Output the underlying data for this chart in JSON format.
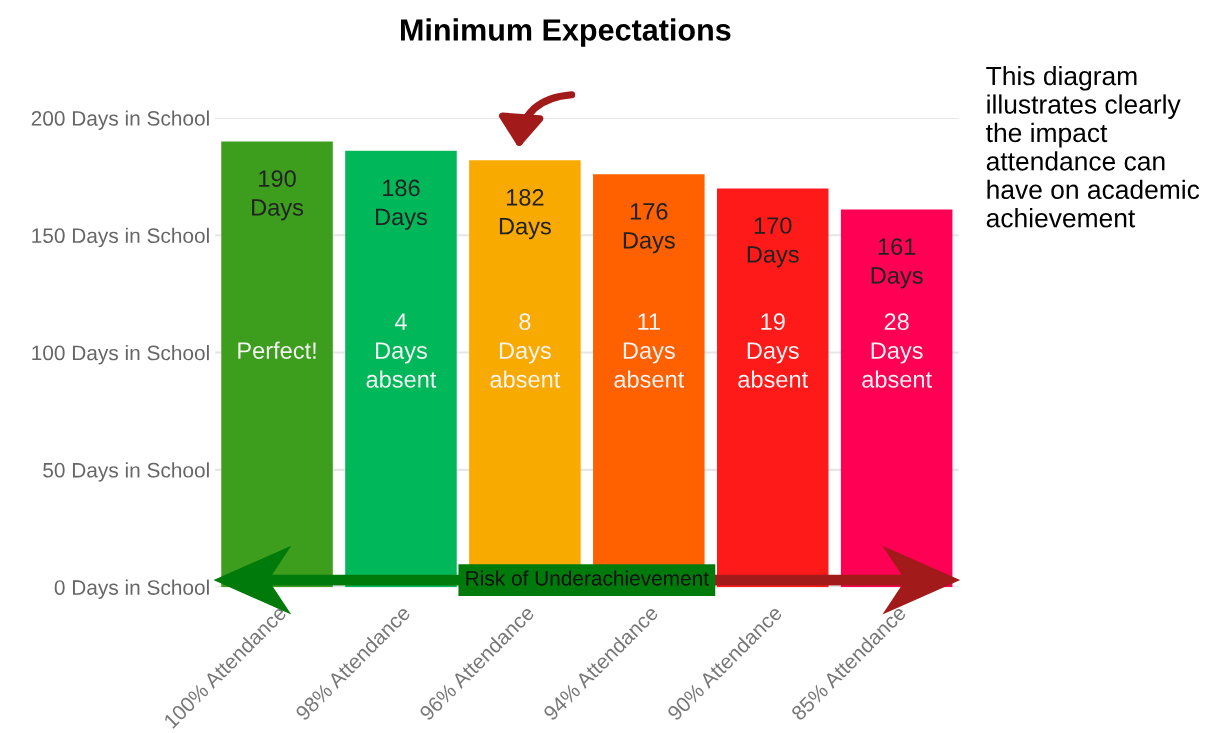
{
  "chart_data": {
    "type": "bar",
    "title": "Minimum Expectations",
    "categories": [
      "100% Attendance",
      "98% Attendance",
      "96% Attendance",
      "94% Attendance",
      "90% Attendance",
      "85% Attendance"
    ],
    "values": [
      190,
      186,
      182,
      176,
      170,
      161
    ],
    "colors": [
      "#3d9e1e",
      "#00b85a",
      "#f8aa00",
      "#ff6000",
      "#ff1a1a",
      "#ff0055"
    ],
    "value_labels": [
      "190\nDays",
      "186\nDays",
      "182\nDays",
      "176\nDays",
      "170\nDays",
      "161\nDays"
    ],
    "ylim": [
      0,
      200
    ],
    "yticks": [
      {
        "value": 0,
        "label": "0 Days in School"
      },
      {
        "value": 50,
        "label": "50 Days in School"
      },
      {
        "value": 100,
        "label": "100 Days in School"
      },
      {
        "value": 150,
        "label": "150 Days in School"
      },
      {
        "value": 200,
        "label": "200 Days in School"
      }
    ],
    "grid": "y",
    "annotations": [
      "Risk of Underachievement",
      "This diagram\nillustrates clearly\nthe impact\nattendance can\nhave on academic\nachievement",
      "Perfect!",
      "4\nDays\nabsent",
      "8\nDays\nabsent",
      "11\nDays\nabsent",
      "19\nDays\nabsent",
      "28\nDays\nabsent"
    ]
  }
}
